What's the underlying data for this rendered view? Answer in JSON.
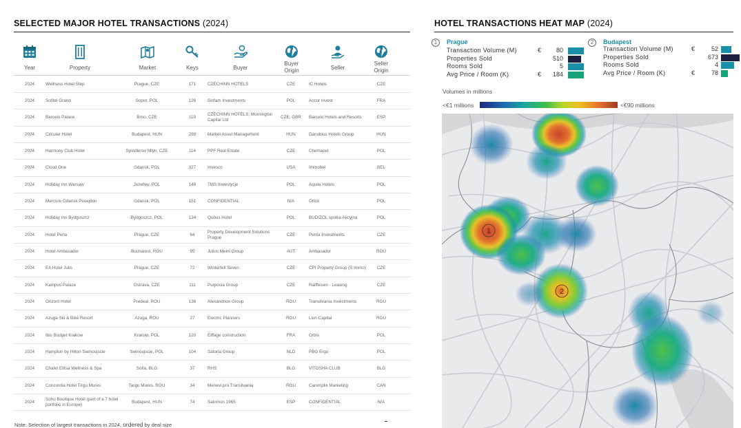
{
  "left": {
    "title_bold": "SELECTED MAJOR HOTEL TRANSACTIONS",
    "title_year": "(2024)",
    "headers": {
      "year": "Year",
      "property": "Property",
      "market": "Market",
      "keys": "Keys",
      "buyer": "Buyer",
      "buyer_origin_1": "Buyer",
      "buyer_origin_2": "Origin",
      "seller": "Seller",
      "seller_origin_1": "Seller",
      "seller_origin_2": "Origin"
    },
    "icons": {
      "year": "calendar-icon",
      "property": "building-icon",
      "market": "map-icon",
      "keys": "key-icon",
      "buyer": "hand-money-icon",
      "buyer_origin": "globe-icon",
      "seller": "seller-icon",
      "seller_origin": "globe-icon"
    },
    "rows": [
      {
        "year": "2024",
        "property": "Wellness Hotel Step",
        "market": "Prague, CZE",
        "keys": "171",
        "buyer": "CZECHINN HOTELS",
        "buyer_origin": "CZE",
        "seller": "IC Hotels",
        "seller_origin": "CZE"
      },
      {
        "year": "2024",
        "property": "Sofitel Grand",
        "market": "Sopot, POL",
        "keys": "126",
        "buyer": "Sinfam Investments",
        "buyer_origin": "POL",
        "seller": "Accor Invest",
        "seller_origin": "FRA"
      },
      {
        "year": "2024",
        "property": "Barcelo Palace",
        "market": "Brno, CZE",
        "keys": "119",
        "buyer": "CZECHINN HOTELS; Mornington Capital Ltd",
        "buyer_origin": "CZE; GBR",
        "seller": "Barcelo Hotels and Resorts",
        "seller_origin": "ESP"
      },
      {
        "year": "2024",
        "property": "Circular Hotel",
        "market": "Budapest, HUN",
        "keys": "289",
        "buyer": "Market Asset Management",
        "buyer_origin": "HUN",
        "seller": "Danubius Hotels Group",
        "seller_origin": "HUN"
      },
      {
        "year": "2024",
        "property": "Harmony Club Hotel",
        "market": "Spindleruv Mlyn, CZE",
        "keys": "114",
        "buyer": "PPF Real Estate",
        "buyer_origin": "CZE",
        "seller": "Chemapol",
        "seller_origin": "POL"
      },
      {
        "year": "2024",
        "property": "Cloud One",
        "market": "Gdansk, POL",
        "keys": "327",
        "buyer": "Invesco",
        "buyer_origin": "USA",
        "seller": "Immobel",
        "seller_origin": "BEL"
      },
      {
        "year": "2024",
        "property": "Holiday Inn Warsaw",
        "market": "Jozefow, POL",
        "keys": "148",
        "buyer": "TMS Inwestycje",
        "buyer_origin": "POL",
        "seller": "Aquila Hotels",
        "seller_origin": "POL"
      },
      {
        "year": "2024",
        "property": "Mercure Gdansk Posejdon",
        "market": "Gdansk, POL",
        "keys": "151",
        "buyer": "CONFIDENTIAL",
        "buyer_origin": "N/A",
        "seller": "Orbis",
        "seller_origin": "POL"
      },
      {
        "year": "2024",
        "property": "Holiday Inn Bydgoszcz",
        "market": "Bydgoszcz, POL",
        "keys": "134",
        "buyer": "Qubus Hotel",
        "buyer_origin": "POL",
        "seller": "BUDIZOL spolka Akcyjna",
        "seller_origin": "POL"
      },
      {
        "year": "2024",
        "property": "Hotel Perla",
        "market": "Prague, CZE",
        "keys": "64",
        "buyer": "Property Development Solutions Prague",
        "buyer_origin": "CZE",
        "seller": "Penta Investments",
        "seller_origin": "CZE"
      },
      {
        "year": "2024",
        "property": "Hotel Ambasador",
        "market": "Bucharest, ROU",
        "keys": "95",
        "buyer": "Julius Meinl Group",
        "buyer_origin": "AUT",
        "seller": "Ambasador",
        "seller_origin": "ROU"
      },
      {
        "year": "2024",
        "property": "EA Hotel Julis",
        "market": "Prague, CZE",
        "keys": "72",
        "buyer": "Winterfell Seven",
        "buyer_origin": "CZE",
        "seller": "CPI Property Group (S Immo)",
        "seller_origin": "CZE"
      },
      {
        "year": "2024",
        "property": "Kampus Palace",
        "market": "Ostrava, CZE",
        "keys": "111",
        "buyer": "Purposia Group",
        "buyer_origin": "CZE",
        "seller": "Raiffeisen - Leasing",
        "seller_origin": "CZE"
      },
      {
        "year": "2024",
        "property": "Orizont Hotel",
        "market": "Predeal, ROU",
        "keys": "136",
        "buyer": "Alexandrion Group",
        "buyer_origin": "ROU",
        "seller": "Transilvania Investments",
        "seller_origin": "ROU"
      },
      {
        "year": "2024",
        "property": "Azuga Ski & Bike Resort",
        "market": "Azuga, ROU",
        "keys": "27",
        "buyer": "Electric Planners",
        "buyer_origin": "ROU",
        "seller": "Lion Capital",
        "seller_origin": "ROU"
      },
      {
        "year": "2024",
        "property": "Ibis Budget Krakow",
        "market": "Krakow, POL",
        "keys": "120",
        "buyer": "Eiffage construction",
        "buyer_origin": "FRA",
        "seller": "Orbis",
        "seller_origin": "POL"
      },
      {
        "year": "2024",
        "property": "Hampton by Hilton Swinoujscie",
        "market": "Swinoujscie, POL",
        "keys": "104",
        "buyer": "Satoria Group",
        "buyer_origin": "NLD",
        "seller": "PBG Ergo",
        "seller_origin": "POL"
      },
      {
        "year": "2024",
        "property": "Chalet Elitsa Wellness & Spa",
        "market": "Sofia, BLG",
        "keys": "37",
        "buyer": "RHS",
        "buyer_origin": "BLG",
        "seller": "VITOSHA CLUB",
        "seller_origin": "BLG"
      },
      {
        "year": "2024",
        "property": "Concordia Hotel Tirgu Mures",
        "market": "Targu Mures, ROU",
        "keys": "34",
        "buyer": "Menevi pro Transilvania",
        "buyer_origin": "ROU",
        "seller": "Canimplix Marketing",
        "seller_origin": "CAN"
      },
      {
        "year": "2024",
        "property": "Soho Boutique Hotel (part of a 7 hotel portfolio in Europe)",
        "market": "Budapest, HUN",
        "keys": "74",
        "buyer": "Salomon 1965",
        "buyer_origin": "ESP",
        "seller": "CONFIDENTIAL",
        "seller_origin": "N/A"
      }
    ],
    "note_a": "Note: Selection of largest transactions in 2024, ",
    "note_b": "ordered",
    "note_c": " by deal size"
  },
  "right": {
    "title_bold": "HOTEL TRANSACTIONS HEAT MAP",
    "title_year": "(2024)",
    "cities": [
      {
        "num": "1",
        "name": "Prague",
        "rows": [
          {
            "label": "Transaction Volume (M)",
            "currency": "€",
            "value": "80",
            "bar_fraction": 0.6,
            "bar_color": "#1a8fa8"
          },
          {
            "label": "Properties Sold",
            "currency": "",
            "value": "510",
            "bar_fraction": 0.5,
            "bar_color": "#1c1f3f"
          },
          {
            "label": "Rooms Sold",
            "currency": "",
            "value": "5",
            "bar_fraction": 0.6,
            "bar_color": "#1a8fa8"
          },
          {
            "label": "Avg Price / Room (K)",
            "currency": "€",
            "value": "184",
            "bar_fraction": 0.6,
            "bar_color": "#17a37a"
          }
        ]
      },
      {
        "num": "2",
        "name": "Budapest",
        "rows": [
          {
            "label": "Transaction Volume (M)",
            "currency": "€",
            "value": "52",
            "bar_fraction": 0.4,
            "bar_color": "#1a8fa8"
          },
          {
            "label": "Properties Sold",
            "currency": "",
            "value": "673",
            "bar_fraction": 0.7,
            "bar_color": "#1c1f3f"
          },
          {
            "label": "Rooms Sold",
            "currency": "",
            "value": "4",
            "bar_fraction": 0.5,
            "bar_color": "#1a8fa8"
          },
          {
            "label": "Avg Price / Room (K)",
            "currency": "€",
            "value": "78",
            "bar_fraction": 0.25,
            "bar_color": "#17a37a"
          }
        ]
      }
    ],
    "volumes_label": "Volumes in millions",
    "scale_min": "<€1 millions",
    "scale_max": "<€90 millions",
    "map_markers": [
      "1",
      "2"
    ]
  }
}
